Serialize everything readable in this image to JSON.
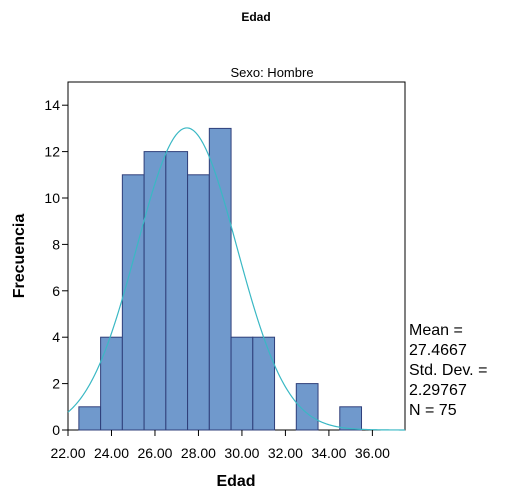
{
  "chart_data": {
    "type": "bar",
    "title": "Edad",
    "panel_label": "Sexo: Hombre",
    "xlabel": "Edad",
    "ylabel": "Frecuencia",
    "bin_width": 1.0,
    "bins": [
      {
        "start": 22.5,
        "end": 23.5,
        "count": 1
      },
      {
        "start": 23.5,
        "end": 24.5,
        "count": 4
      },
      {
        "start": 24.5,
        "end": 25.5,
        "count": 11
      },
      {
        "start": 25.5,
        "end": 26.5,
        "count": 12
      },
      {
        "start": 26.5,
        "end": 27.5,
        "count": 12
      },
      {
        "start": 27.5,
        "end": 28.5,
        "count": 11
      },
      {
        "start": 28.5,
        "end": 29.5,
        "count": 13
      },
      {
        "start": 29.5,
        "end": 30.5,
        "count": 4
      },
      {
        "start": 30.5,
        "end": 31.5,
        "count": 4
      },
      {
        "start": 31.5,
        "end": 32.5,
        "count": 0
      },
      {
        "start": 32.5,
        "end": 33.5,
        "count": 2
      },
      {
        "start": 33.5,
        "end": 34.5,
        "count": 0
      },
      {
        "start": 34.5,
        "end": 35.5,
        "count": 1
      }
    ],
    "xlim": [
      22.0,
      37.5
    ],
    "ylim": [
      0,
      15
    ],
    "x_ticks": [
      {
        "value": 22,
        "label": "22.00"
      },
      {
        "value": 24,
        "label": "24.00"
      },
      {
        "value": 26,
        "label": "26.00"
      },
      {
        "value": 28,
        "label": "28.00"
      },
      {
        "value": 30,
        "label": "30.00"
      },
      {
        "value": 32,
        "label": "32.00"
      },
      {
        "value": 34,
        "label": "34.00"
      },
      {
        "value": 36,
        "label": "36.00"
      }
    ],
    "y_ticks": [
      {
        "value": 0,
        "label": "0"
      },
      {
        "value": 2,
        "label": "2"
      },
      {
        "value": 4,
        "label": "4"
      },
      {
        "value": 6,
        "label": "6"
      },
      {
        "value": 8,
        "label": "8"
      },
      {
        "value": 10,
        "label": "10"
      },
      {
        "value": 12,
        "label": "12"
      },
      {
        "value": 14,
        "label": "14"
      }
    ],
    "normal_curve": {
      "mean": 27.4667,
      "sd": 2.29767,
      "n": 75
    },
    "stats_lines": [
      "Mean =",
      "27.4667",
      "Std. Dev. =",
      "2.29767",
      "N = 75"
    ],
    "grid": false,
    "colors": {
      "bar_fill": "#7099cc",
      "bar_stroke": "#2f3f7a",
      "curve": "#3ab8c4"
    }
  }
}
